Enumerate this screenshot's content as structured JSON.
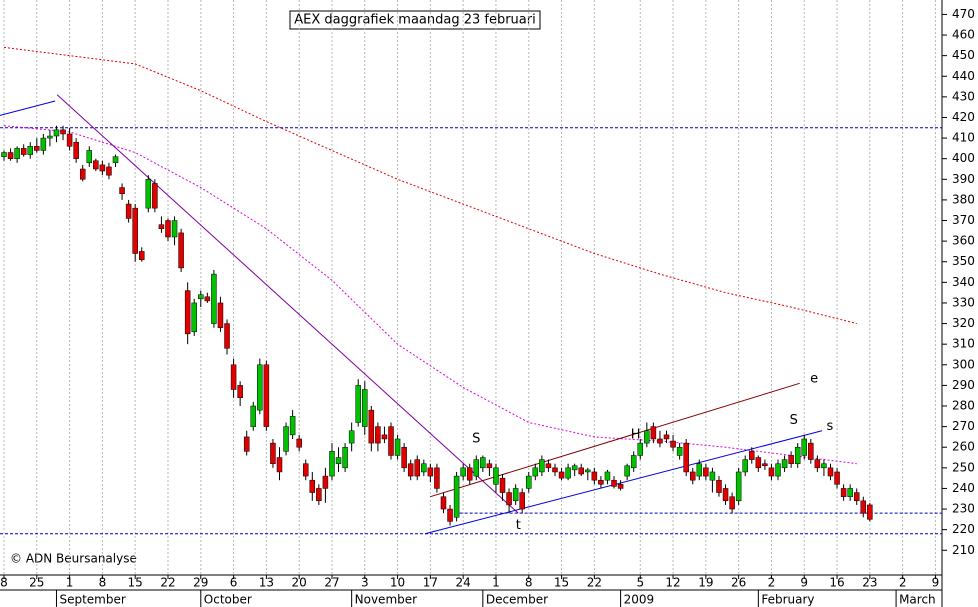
{
  "chart_data": {
    "type": "candlestick",
    "title": "AEX daggrafiek maandag 23 februari",
    "copyright": "© ADN Beursanalyse",
    "up_color": "#00c000",
    "down_color": "#e00000",
    "grid": true,
    "xlim": [
      -0.61,
      143.0
    ],
    "ylim": [
      198,
      477
    ],
    "yticks": [
      210,
      220,
      230,
      240,
      250,
      260,
      270,
      280,
      290,
      300,
      310,
      320,
      330,
      340,
      350,
      360,
      370,
      380,
      390,
      400,
      410,
      420,
      430,
      440,
      450,
      460,
      470
    ],
    "xticks": [
      {
        "value": 0,
        "label": "8"
      },
      {
        "value": 5,
        "label": "25"
      },
      {
        "value": 10,
        "label": "1"
      },
      {
        "value": 15,
        "label": "8"
      },
      {
        "value": 20,
        "label": "15"
      },
      {
        "value": 25,
        "label": "22"
      },
      {
        "value": 30,
        "label": "29"
      },
      {
        "value": 35,
        "label": "6"
      },
      {
        "value": 40,
        "label": "13"
      },
      {
        "value": 45,
        "label": "20"
      },
      {
        "value": 50,
        "label": "27"
      },
      {
        "value": 55,
        "label": "3"
      },
      {
        "value": 60,
        "label": "10"
      },
      {
        "value": 65,
        "label": "17"
      },
      {
        "value": 70,
        "label": "24"
      },
      {
        "value": 75,
        "label": "1"
      },
      {
        "value": 80,
        "label": "8"
      },
      {
        "value": 85,
        "label": "15"
      },
      {
        "value": 90,
        "label": "22"
      },
      {
        "value": 97,
        "label": "5"
      },
      {
        "value": 102,
        "label": "12"
      },
      {
        "value": 107,
        "label": "19"
      },
      {
        "value": 112,
        "label": "26"
      },
      {
        "value": 117,
        "label": "2"
      },
      {
        "value": 122,
        "label": "9"
      },
      {
        "value": 127,
        "label": "16"
      },
      {
        "value": 132,
        "label": "23"
      },
      {
        "value": 137,
        "label": "2"
      },
      {
        "value": 142,
        "label": "9"
      }
    ],
    "months": [
      {
        "value": 8,
        "label": "September"
      },
      {
        "value": 30,
        "label": "October"
      },
      {
        "value": 53,
        "label": "November"
      },
      {
        "value": 73,
        "label": "December"
      },
      {
        "value": 94,
        "label": "2009"
      },
      {
        "value": 115,
        "label": "February"
      },
      {
        "value": 136,
        "label": "March"
      }
    ],
    "open": [
      401,
      403,
      400,
      405,
      402,
      406,
      404,
      410,
      411,
      414,
      412,
      408,
      395,
      398,
      399,
      397,
      396,
      398,
      386,
      378,
      376,
      355,
      376,
      388,
      368,
      370,
      362,
      364,
      336,
      316,
      332,
      333,
      320,
      330,
      320,
      300,
      290,
      265,
      270,
      278,
      300,
      262,
      255,
      258,
      266,
      264,
      252,
      244,
      240,
      246,
      246,
      252,
      250,
      262,
      272,
      270,
      278,
      270,
      266,
      270,
      256,
      260,
      252,
      254,
      248,
      250,
      250,
      236,
      230,
      226,
      246,
      250,
      246,
      250,
      252,
      242,
      245,
      238,
      234,
      238,
      240,
      246,
      248,
      252,
      250,
      248,
      245,
      249,
      250,
      248,
      248,
      244,
      244,
      244,
      242,
      246,
      250,
      256,
      262,
      270,
      264,
      266,
      263,
      256,
      262,
      248,
      246,
      250,
      244,
      244,
      240,
      236,
      234,
      248,
      258,
      255,
      252,
      250,
      246,
      250,
      256,
      252,
      256,
      262,
      254,
      250,
      250,
      248,
      240,
      236,
      238,
      234,
      232
    ],
    "high": [
      404,
      405,
      406,
      407,
      408,
      410,
      412,
      414,
      416,
      416,
      415,
      410,
      397,
      406,
      400,
      399,
      398,
      402,
      388,
      380,
      378,
      357,
      392,
      390,
      372,
      371,
      372,
      366,
      340,
      332,
      336,
      335,
      346,
      333,
      322,
      303,
      292,
      268,
      282,
      303,
      302,
      264,
      260,
      272,
      278,
      266,
      254,
      248,
      242,
      250,
      262,
      260,
      262,
      272,
      293,
      292,
      280,
      272,
      270,
      272,
      266,
      262,
      254,
      256,
      254,
      252,
      252,
      238,
      232,
      248,
      252,
      252,
      256,
      256,
      254,
      252,
      247,
      240,
      242,
      240,
      248,
      252,
      256,
      254,
      252,
      250,
      252,
      252,
      252,
      250,
      250,
      246,
      249,
      246,
      244,
      252,
      258,
      264,
      272,
      272,
      268,
      268,
      266,
      262,
      264,
      250,
      254,
      252,
      250,
      246,
      242,
      238,
      250,
      256,
      260,
      256,
      254,
      252,
      254,
      256,
      258,
      262,
      266,
      264,
      256,
      254,
      252,
      250,
      242,
      242,
      240,
      236,
      233
    ],
    "low": [
      399,
      399,
      398,
      401,
      400,
      403,
      402,
      406,
      408,
      409,
      404,
      398,
      389,
      396,
      394,
      392,
      390,
      396,
      380,
      369,
      350,
      350,
      374,
      374,
      364,
      360,
      358,
      345,
      310,
      314,
      328,
      330,
      318,
      316,
      305,
      284,
      280,
      256,
      268,
      276,
      268,
      250,
      244,
      256,
      264,
      258,
      244,
      234,
      232,
      233,
      244,
      248,
      248,
      258,
      270,
      266,
      258,
      258,
      262,
      254,
      254,
      248,
      244,
      244,
      246,
      243,
      238,
      228,
      222,
      224,
      244,
      242,
      244,
      248,
      246,
      238,
      234,
      228,
      232,
      228,
      238,
      244,
      246,
      248,
      246,
      244,
      244,
      246,
      246,
      244,
      242,
      240,
      242,
      240,
      239,
      244,
      248,
      254,
      260,
      262,
      260,
      262,
      258,
      254,
      246,
      242,
      244,
      244,
      238,
      236,
      232,
      228,
      232,
      246,
      252,
      248,
      249,
      244,
      244,
      248,
      250,
      250,
      254,
      252,
      248,
      246,
      244,
      240,
      234,
      234,
      232,
      226,
      224
    ],
    "close": [
      403,
      400,
      405,
      402,
      406,
      404,
      410,
      411,
      414,
      412,
      406,
      400,
      390,
      404,
      395,
      394,
      392,
      401,
      383,
      371,
      354,
      351,
      390,
      376,
      366,
      362,
      370,
      347,
      315,
      330,
      334,
      331,
      344,
      318,
      308,
      288,
      284,
      258,
      280,
      300,
      270,
      252,
      248,
      270,
      275,
      260,
      246,
      238,
      234,
      240,
      258,
      255,
      260,
      268,
      290,
      288,
      262,
      262,
      264,
      256,
      264,
      250,
      246,
      246,
      252,
      246,
      240,
      230,
      224,
      246,
      250,
      244,
      254,
      255,
      250,
      250,
      238,
      232,
      240,
      230,
      246,
      250,
      254,
      250,
      248,
      245,
      250,
      251,
      247,
      249,
      244,
      242,
      248,
      241,
      240,
      251,
      256,
      262,
      268,
      264,
      262,
      264,
      260,
      260,
      248,
      244,
      252,
      246,
      248,
      238,
      234,
      230,
      248,
      254,
      254,
      250,
      251,
      246,
      252,
      254,
      252,
      260,
      264,
      254,
      250,
      252,
      246,
      242,
      236,
      240,
      234,
      228,
      225
    ],
    "lines": [
      {
        "color": "#e00000",
        "x": [
          0,
          10,
          20,
          30,
          40,
          50,
          60,
          70,
          80,
          90,
          100,
          110,
          120,
          130
        ],
        "values": [
          454,
          450,
          446,
          433,
          418,
          404,
          390,
          378,
          366,
          354,
          344,
          335,
          328,
          320
        ]
      },
      {
        "color": "#e000e0",
        "x": [
          0,
          10,
          20,
          30,
          40,
          50,
          60,
          70,
          80,
          90,
          100,
          110,
          120,
          130
        ],
        "values": [
          416,
          413,
          403,
          386,
          366,
          341,
          310,
          289,
          272,
          265,
          263,
          260,
          256,
          252
        ]
      }
    ],
    "trendlines": [
      {
        "color": "#0000e0",
        "from": [
          -0.6,
          421
        ],
        "to": [
          7.8,
          428
        ]
      },
      {
        "color": "#8000a0",
        "from": [
          8.1,
          431
        ],
        "to": [
          78.4,
          228
        ]
      },
      {
        "color": "#800000",
        "from": [
          65,
          236
        ],
        "to": [
          121.3,
          291
        ]
      },
      {
        "color": "#0000e0",
        "from": [
          64.2,
          218
        ],
        "to": [
          124.7,
          268
        ]
      }
    ],
    "hlines": [
      {
        "color": "#0000c0",
        "value": 415,
        "start": -0.61
      },
      {
        "color": "#0000c0",
        "value": 228,
        "start": 68.7
      },
      {
        "color": "#0000c0",
        "value": 218,
        "start": -0.61
      }
    ],
    "annotations": [
      {
        "text": "S",
        "x": 72,
        "y": 264,
        "color": "#0000c0"
      },
      {
        "text": "t",
        "x": 78.4,
        "y": 222,
        "color": "#0000c0"
      },
      {
        "text": "H",
        "x": 96.3,
        "y": 266,
        "color": "#0000c0"
      },
      {
        "text": "S",
        "x": 120.4,
        "y": 273,
        "color": "#0000c0"
      },
      {
        "text": "s",
        "x": 125.9,
        "y": 270,
        "color": "#0000c0"
      },
      {
        "text": "e",
        "x": 123.5,
        "y": 293,
        "color": "#800000"
      }
    ]
  }
}
